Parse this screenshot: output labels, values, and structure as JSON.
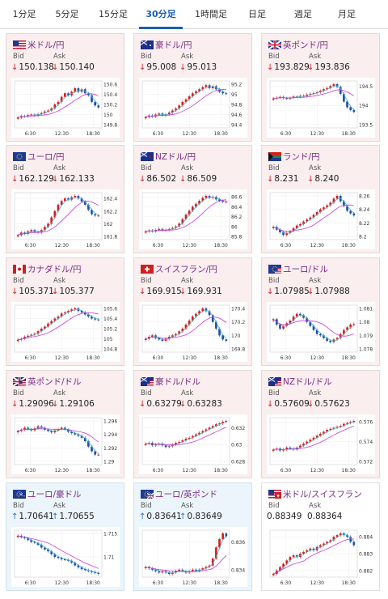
{
  "tabs": [
    {
      "label": "1分足",
      "active": false
    },
    {
      "label": "5分足",
      "active": false
    },
    {
      "label": "15分足",
      "active": false
    },
    {
      "label": "30分足",
      "active": true
    },
    {
      "label": "1時間足",
      "active": false
    },
    {
      "label": "日足",
      "active": false
    },
    {
      "label": "週足",
      "active": false
    },
    {
      "label": "月足",
      "active": false
    }
  ],
  "labels": {
    "bid": "Bid",
    "ask": "Ask"
  },
  "colors": {
    "up_candle": "#d21e1e",
    "down_candle": "#1e4fa8",
    "ma_short": "#49b4c9",
    "ma_long": "#c93ad3",
    "arrow_down": "#d21e1e",
    "arrow_up": "#1e73c9"
  },
  "cards": [
    {
      "title": "米ドル/円",
      "flag": "us-flag",
      "bid": "150.138",
      "ask": "150.140",
      "dir": "down",
      "x_ticks": [
        "6:30",
        "12:30",
        "18:30"
      ],
      "y_ticks": [
        150.6,
        150.4,
        150.2,
        150,
        149.8
      ],
      "closes": [
        149.94,
        149.97,
        149.96,
        149.99,
        150.0,
        149.98,
        150.01,
        150.03,
        150.06,
        150.08,
        150.12,
        150.2,
        150.25,
        150.35,
        150.42,
        150.38,
        150.45,
        150.52,
        150.45,
        150.5,
        150.42,
        150.38,
        150.25,
        150.18,
        150.14
      ]
    },
    {
      "title": "豪ドル/円",
      "flag": "au-flag",
      "bid": "95.008",
      "ask": "95.013",
      "dir": "down",
      "x_ticks": [
        "6:30",
        "12:30",
        "18:30"
      ],
      "y_ticks": [
        95.2,
        95,
        94.8,
        94.6,
        94.4
      ],
      "closes": [
        94.55,
        94.58,
        94.56,
        94.6,
        94.62,
        94.58,
        94.6,
        94.64,
        94.68,
        94.72,
        94.78,
        94.85,
        94.9,
        94.96,
        95.02,
        95.06,
        95.1,
        95.14,
        95.18,
        95.12,
        95.16,
        95.1,
        95.05,
        95.02,
        95.01
      ]
    },
    {
      "title": "英ポンド/円",
      "flag": "gb-flag",
      "bid": "193.829",
      "ask": "193.836",
      "dir": "down",
      "x_ticks": [
        "6:30",
        "12:30",
        "18:30"
      ],
      "y_ticks": [
        194.5,
        194,
        193.5
      ],
      "closes": [
        194.18,
        194.2,
        194.22,
        194.19,
        194.17,
        194.2,
        194.23,
        194.22,
        194.25,
        194.24,
        194.28,
        194.3,
        194.32,
        194.34,
        194.38,
        194.42,
        194.45,
        194.5,
        194.55,
        194.48,
        194.3,
        194.1,
        193.95,
        193.88,
        193.83
      ]
    },
    {
      "title": "ユーロ/円",
      "flag": "eu-flag",
      "bid": "162.129",
      "ask": "162.133",
      "dir": "down",
      "x_ticks": [
        "6:30",
        "12:30",
        "18:30"
      ],
      "y_ticks": [
        162.4,
        162.2,
        162,
        161.8
      ],
      "closes": [
        161.82,
        161.86,
        161.84,
        161.88,
        161.9,
        161.87,
        161.86,
        161.9,
        161.95,
        162.0,
        162.1,
        162.2,
        162.3,
        162.36,
        162.4,
        162.38,
        162.42,
        162.44,
        162.4,
        162.35,
        162.3,
        162.22,
        162.15,
        162.13,
        162.13
      ]
    },
    {
      "title": "NZドル/円",
      "flag": "nz-flag",
      "bid": "86.502",
      "ask": "86.509",
      "dir": "down",
      "x_ticks": [
        "6:30",
        "12:30",
        "18:30"
      ],
      "y_ticks": [
        86.6,
        86.4,
        86.2,
        86,
        85.8
      ],
      "closes": [
        85.9,
        85.92,
        85.9,
        85.93,
        85.95,
        85.92,
        85.93,
        85.95,
        85.97,
        86.0,
        86.06,
        86.15,
        86.24,
        86.32,
        86.4,
        86.46,
        86.52,
        86.58,
        86.62,
        86.58,
        86.6,
        86.55,
        86.52,
        86.5,
        86.5
      ]
    },
    {
      "title": "ランド/円",
      "flag": "za-flag",
      "bid": "8.231",
      "ask": "8.240",
      "dir": "down",
      "x_ticks": [
        "6:30",
        "12:30",
        "18:30"
      ],
      "y_ticks": [
        8.26,
        8.24,
        8.22,
        8.2
      ],
      "closes": [
        8.214,
        8.21,
        8.206,
        8.202,
        8.205,
        8.208,
        8.212,
        8.216,
        8.218,
        8.222,
        8.225,
        8.228,
        8.232,
        8.236,
        8.24,
        8.243,
        8.246,
        8.25,
        8.256,
        8.26,
        8.252,
        8.245,
        8.238,
        8.234,
        8.231
      ]
    },
    {
      "title": "カナダドル/円",
      "flag": "ca-flag",
      "bid": "105.371",
      "ask": "105.377",
      "dir": "down",
      "x_ticks": [
        "6:30",
        "12:30",
        "18:30"
      ],
      "y_ticks": [
        105.6,
        105.4,
        105.2,
        105,
        104.8
      ],
      "closes": [
        104.98,
        105.0,
        105.04,
        105.06,
        105.08,
        105.1,
        105.15,
        105.2,
        105.24,
        105.3,
        105.35,
        105.4,
        105.44,
        105.5,
        105.52,
        105.55,
        105.58,
        105.6,
        105.55,
        105.52,
        105.48,
        105.44,
        105.4,
        105.38,
        105.37
      ]
    },
    {
      "title": "スイスフラン/円",
      "flag": "ch-flag",
      "bid": "169.915",
      "ask": "169.931",
      "dir": "down",
      "x_ticks": [
        "6:30",
        "12:30",
        "18:30"
      ],
      "y_ticks": [
        170.4,
        170.2,
        170,
        169.8
      ],
      "closes": [
        169.95,
        169.98,
        170.0,
        169.96,
        169.94,
        169.92,
        169.95,
        169.98,
        170.0,
        170.02,
        170.06,
        170.1,
        170.16,
        170.22,
        170.28,
        170.32,
        170.36,
        170.4,
        170.36,
        170.3,
        170.2,
        170.1,
        170.0,
        169.94,
        169.92
      ]
    },
    {
      "title": "ユーロ/ドル",
      "flag": "eu-us-flag",
      "bid": "1.07985",
      "ask": "1.07988",
      "dir": "down",
      "x_ticks": [
        "6:30",
        "12:30",
        "18:30"
      ],
      "y_ticks": [
        1.081,
        1.08,
        1.079,
        1.078
      ],
      "closes": [
        1.0802,
        1.0798,
        1.0795,
        1.0797,
        1.0799,
        1.0801,
        1.0804,
        1.0806,
        1.0805,
        1.0803,
        1.08,
        1.0797,
        1.0794,
        1.0791,
        1.079,
        1.0788,
        1.0786,
        1.0785,
        1.0787,
        1.0788,
        1.0791,
        1.0794,
        1.0796,
        1.0798,
        1.07985
      ]
    },
    {
      "title": "英ポンド/ドル",
      "flag": "gb-us-flag",
      "bid": "1.29096",
      "ask": "1.29106",
      "dir": "down",
      "x_ticks": [
        "6:30",
        "12:30",
        "18:30"
      ],
      "y_ticks": [
        1.296,
        1.294,
        1.292,
        1.29
      ],
      "closes": [
        1.2945,
        1.2947,
        1.295,
        1.2948,
        1.2946,
        1.2949,
        1.2952,
        1.295,
        1.2947,
        1.2945,
        1.2943,
        1.2946,
        1.2948,
        1.295,
        1.2947,
        1.2944,
        1.2942,
        1.294,
        1.2938,
        1.2935,
        1.293,
        1.2922,
        1.2915,
        1.291,
        1.291
      ]
    },
    {
      "title": "豪ドル/ドル",
      "flag": "au-us-flag",
      "bid": "0.63279",
      "ask": "0.63283",
      "dir": "down",
      "x_ticks": [
        "6:30",
        "12:30",
        "18:30"
      ],
      "y_ticks": [
        0.632,
        0.63,
        0.628
      ],
      "closes": [
        0.6301,
        0.6302,
        0.6299,
        0.63,
        0.6301,
        0.6299,
        0.6297,
        0.6298,
        0.63,
        0.6302,
        0.6303,
        0.6305,
        0.6307,
        0.6308,
        0.631,
        0.6312,
        0.6314,
        0.6316,
        0.6318,
        0.632,
        0.6322,
        0.6324,
        0.6325,
        0.6327,
        0.6328
      ]
    },
    {
      "title": "NZドル/ドル",
      "flag": "nz-us-flag",
      "bid": "0.57609",
      "ask": "0.57623",
      "dir": "down",
      "x_ticks": [
        "6:30",
        "12:30",
        "18:30"
      ],
      "y_ticks": [
        0.576,
        0.574,
        0.572
      ],
      "closes": [
        0.5732,
        0.5733,
        0.5731,
        0.5732,
        0.5734,
        0.5733,
        0.5732,
        0.5734,
        0.5736,
        0.5738,
        0.574,
        0.5742,
        0.5744,
        0.5746,
        0.5748,
        0.575,
        0.5752,
        0.5753,
        0.5754,
        0.5755,
        0.5756,
        0.5758,
        0.5759,
        0.576,
        0.5761
      ]
    },
    {
      "title": "ユーロ/豪ドル",
      "flag": "eu-au-flag",
      "bid": "1.70641",
      "ask": "1.70655",
      "dir": "up",
      "x_ticks": [
        "6:30",
        "12:30",
        "18:30"
      ],
      "y_ticks": [
        1.715,
        1.71
      ],
      "closes": [
        1.7145,
        1.7142,
        1.714,
        1.7136,
        1.7132,
        1.713,
        1.7126,
        1.712,
        1.7116,
        1.7112,
        1.7106,
        1.71,
        1.7098,
        1.7095,
        1.7094,
        1.7092,
        1.7088,
        1.7082,
        1.7078,
        1.7074,
        1.7072,
        1.707,
        1.7068,
        1.7066,
        1.7064
      ]
    },
    {
      "title": "ユーロ/英ポンド",
      "flag": "eu-gb-flag",
      "bid": "0.83641",
      "ask": "0.83649",
      "dir": "up",
      "x_ticks": [
        "6:30",
        "12:30",
        "18:30"
      ],
      "y_ticks": [
        0.836,
        0.834
      ],
      "closes": [
        0.8342,
        0.8341,
        0.834,
        0.8339,
        0.8338,
        0.8339,
        0.8338,
        0.8337,
        0.8338,
        0.8339,
        0.834,
        0.8339,
        0.8338,
        0.8339,
        0.834,
        0.8339,
        0.834,
        0.8341,
        0.8342,
        0.8343,
        0.8348,
        0.8356,
        0.8362,
        0.8366,
        0.8364
      ]
    },
    {
      "title": "米ドル/スイスフラン",
      "flag": "us-ch-flag",
      "bid": "0.88349",
      "ask": "0.88364",
      "dir": "flat",
      "x_ticks": [
        "6:30",
        "12:30",
        "18:30"
      ],
      "y_ticks": [
        0.884,
        0.883,
        0.882
      ],
      "closes": [
        0.8818,
        0.882,
        0.8822,
        0.8824,
        0.8826,
        0.8828,
        0.8829,
        0.8828,
        0.883,
        0.8831,
        0.8832,
        0.8833,
        0.8832,
        0.8834,
        0.8835,
        0.8836,
        0.8837,
        0.8838,
        0.884,
        0.8841,
        0.8842,
        0.8841,
        0.884,
        0.8837,
        0.8835
      ]
    }
  ]
}
